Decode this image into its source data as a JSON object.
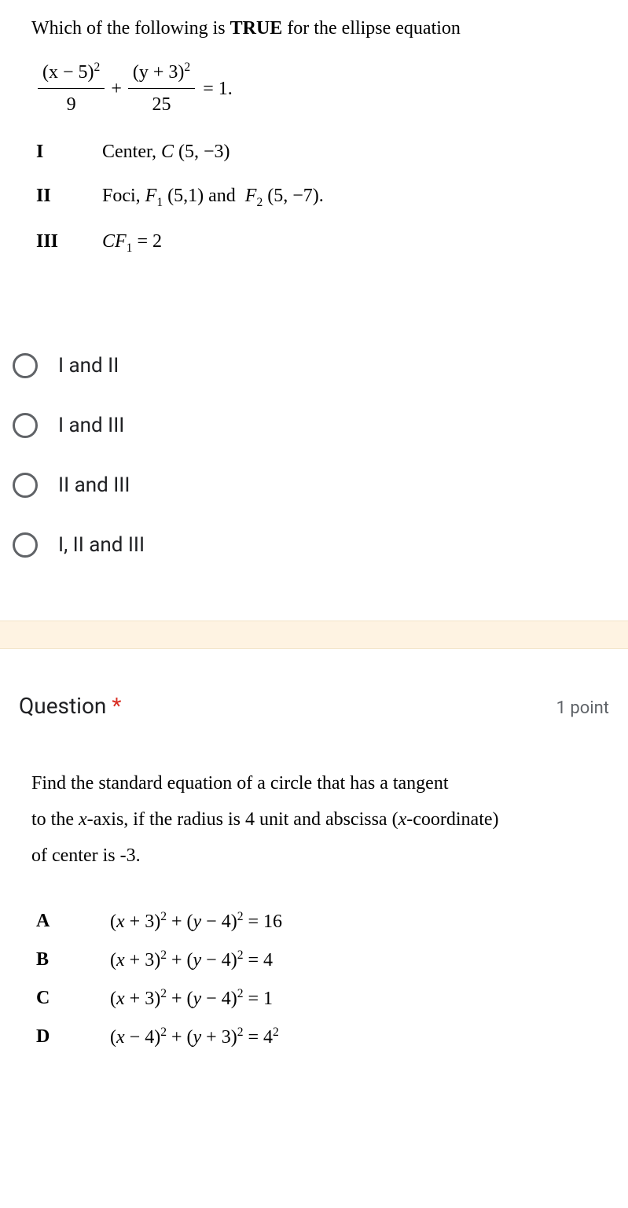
{
  "q1": {
    "prompt_prefix": "Which of the following is ",
    "prompt_bold": "TRUE",
    "prompt_suffix": " for the ellipse equation",
    "equation": {
      "frac1_num": "(x − 5)",
      "frac1_den": "9",
      "plus": "+",
      "frac2_num": "(y + 3)",
      "frac2_den": "25",
      "rhs": "= 1."
    },
    "statements": [
      {
        "label": "I",
        "text_html": "Center, <span class='italic'>C</span> (5, −3)"
      },
      {
        "label": "II",
        "text_html": "Foci, <span class='italic'>F</span><span class='sub'>1</span> (5,1) and&nbsp; <span class='italic'>F</span><span class='sub'>2</span> (5, −7)."
      },
      {
        "label": "III",
        "text_html": "<span class='italic'>CF</span><span class='sub'>1</span> = 2"
      }
    ],
    "options": [
      "I and II",
      "I and III",
      "II and III",
      "I, II and III"
    ]
  },
  "q2": {
    "title": "Question",
    "required_mark": "*",
    "points": "1 point",
    "body_lines": [
      "Find the standard equation of a circle that has a tangent",
      "to the <span class='italic'>x</span>-axis, if the radius is 4 unit and abscissa (<span class='italic'>x</span>-coordinate)",
      "of center is -3."
    ],
    "answers": [
      {
        "label": "A",
        "eq_html": "(<span class='italic'>x</span> + 3)<span class='sup'>2</span> + (<span class='italic'>y</span> − 4)<span class='sup'>2</span> = 16"
      },
      {
        "label": "B",
        "eq_html": "(<span class='italic'>x</span> + 3)<span class='sup'>2</span> + (<span class='italic'>y</span> − 4)<span class='sup'>2</span> = 4"
      },
      {
        "label": "C",
        "eq_html": "(<span class='italic'>x</span> + 3)<span class='sup'>2</span> + (<span class='italic'>y</span> − 4)<span class='sup'>2</span> = 1"
      },
      {
        "label": "D",
        "eq_html": "(<span class='italic'>x</span> − 4)<span class='sup'>2</span> + (<span class='italic'>y</span> + 3)<span class='sup'>2</span> = 4<span class='sup'>2</span>"
      }
    ]
  },
  "colors": {
    "background": "#ffffff",
    "divider_bg": "#fef3e2",
    "text": "#000000",
    "option_text": "#202124",
    "radio_border": "#606367",
    "required": "#d93025",
    "muted": "#5f6368"
  }
}
